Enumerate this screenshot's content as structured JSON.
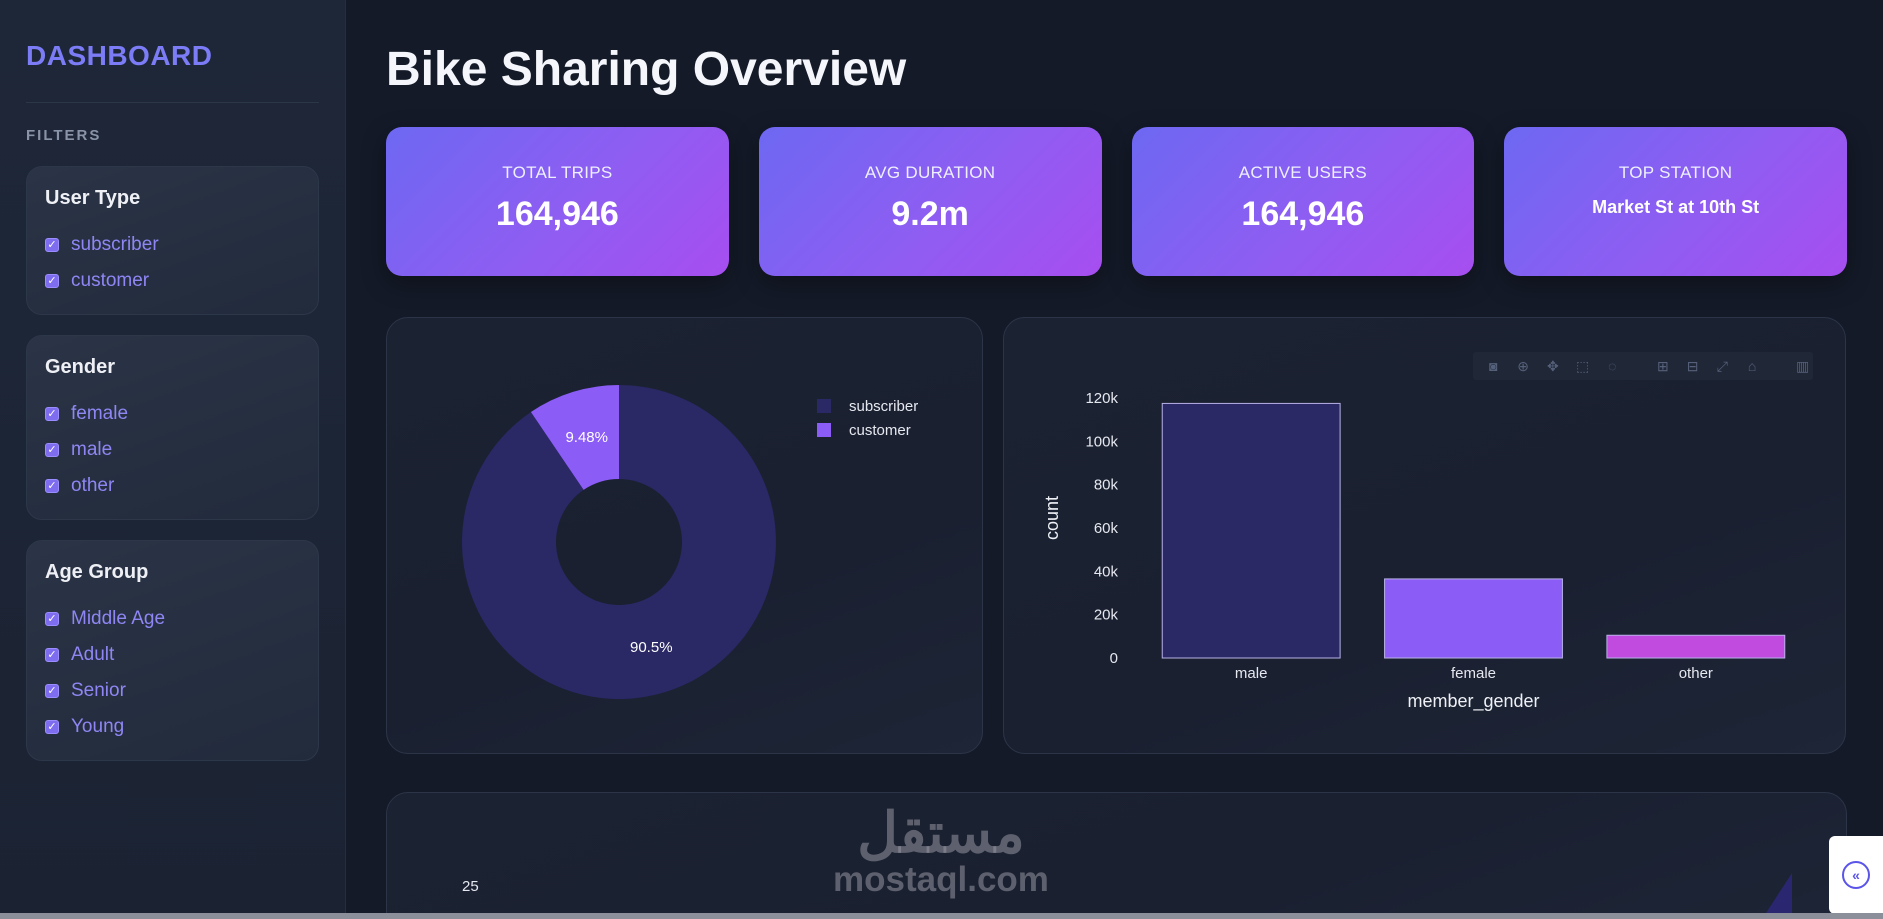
{
  "sidebar": {
    "brand": "DASHBOARD",
    "filters_heading": "FILTERS",
    "groups": [
      {
        "title": "User Type",
        "options": [
          "subscriber",
          "customer"
        ]
      },
      {
        "title": "Gender",
        "options": [
          "female",
          "male",
          "other"
        ]
      },
      {
        "title": "Age Group",
        "options": [
          "Middle Age",
          "Adult",
          "Senior",
          "Young"
        ]
      }
    ]
  },
  "page": {
    "title": "Bike Sharing Overview"
  },
  "kpis": [
    {
      "label": "TOTAL TRIPS",
      "value": "164,946"
    },
    {
      "label": "AVG DURATION",
      "value": "9.2m"
    },
    {
      "label": "ACTIVE USERS",
      "value": "164,946"
    },
    {
      "label": "TOP STATION",
      "value": "Market St at 10th St"
    }
  ],
  "chart_data": [
    {
      "type": "pie",
      "hole": true,
      "categories": [
        "subscriber",
        "customer"
      ],
      "values": [
        90.5,
        9.48
      ],
      "data_labels": [
        "90.5%",
        "9.48%"
      ],
      "colors": [
        "#2a2865",
        "#8b5cf6"
      ],
      "legend": "top-right"
    },
    {
      "type": "bar",
      "categories": [
        "male",
        "female",
        "other"
      ],
      "values": [
        117500,
        36500,
        10500
      ],
      "colors": [
        "#2a2865",
        "#8b5cf6",
        "#c14bdf"
      ],
      "xlabel": "member_gender",
      "ylabel": "count",
      "ylim": [
        0,
        120000
      ],
      "yticks": [
        "0",
        "20k",
        "40k",
        "60k",
        "80k",
        "100k",
        "120k"
      ],
      "grid": false
    }
  ],
  "bottom_chart": {
    "tick_label": "25"
  },
  "modebar": [
    "camera-icon",
    "zoom-icon",
    "pan-icon",
    "box-select-icon",
    "lasso-icon",
    "zoom-in-icon",
    "zoom-out-icon",
    "autoscale-icon",
    "home-icon",
    "plotly-logo-icon"
  ],
  "watermark": {
    "arabic": "مستقل",
    "latin": "mostaql.com"
  },
  "colors": {
    "accent": "#7b7cf6",
    "kpi_start": "#6d68f2",
    "kpi_end": "#a74ef0"
  }
}
